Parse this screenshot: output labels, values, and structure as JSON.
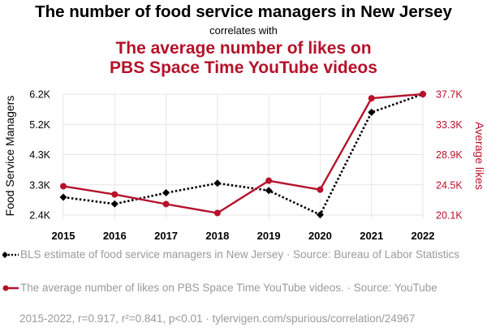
{
  "chart_data": {
    "type": "line",
    "title": "The number of food service managers in New Jersey",
    "connector": "correlates with",
    "subtitle": "The average number of likes on PBS Space Time YouTube videos",
    "subtitle_lines": [
      "The average number of likes on",
      "PBS Space Time YouTube videos"
    ],
    "x": [
      "2015",
      "2016",
      "2017",
      "2018",
      "2019",
      "2020",
      "2021",
      "2022"
    ],
    "ylabel_left": "Food Service Managers",
    "ylabel_right": "Average likes",
    "left_ticks": [
      "2.4K",
      "3.3K",
      "4.3K",
      "5.2K",
      "6.2K"
    ],
    "right_ticks": [
      "20.1K",
      "24.5K",
      "28.9K",
      "33.3K",
      "37.7K"
    ],
    "left_range": [
      2400,
      6200
    ],
    "right_range": [
      20100,
      37700
    ],
    "series": [
      {
        "name": "BLS estimate of food service managers in New Jersey",
        "axis": "left",
        "color": "#000000",
        "style": "dotted",
        "marker": "diamond",
        "values": [
          2960,
          2750,
          3100,
          3400,
          3170,
          2410,
          5630,
          6200
        ]
      },
      {
        "name": "The average number of likes on PBS Space Time YouTube videos",
        "axis": "right",
        "color": "#b5122a",
        "style": "solid",
        "marker": "circle",
        "values": [
          24300,
          23100,
          21700,
          20400,
          25100,
          23800,
          37100,
          37700
        ]
      }
    ],
    "grid": true
  },
  "legend": {
    "item1": "BLS estimate of food service managers in New Jersey · Source: Bureau of Labor Statistics",
    "item2": "The average number of likes on PBS Space Time YouTube videos. · Source: YouTube"
  },
  "footer": "2015-2022, r=0.917, r²=0.841, p<0.01 · tylervigen.com/spurious/correlation/24967",
  "colors": {
    "accent": "#b5122a",
    "primary": "#000000",
    "muted": "#9a9a9a",
    "grid": "#e6e6e6"
  }
}
